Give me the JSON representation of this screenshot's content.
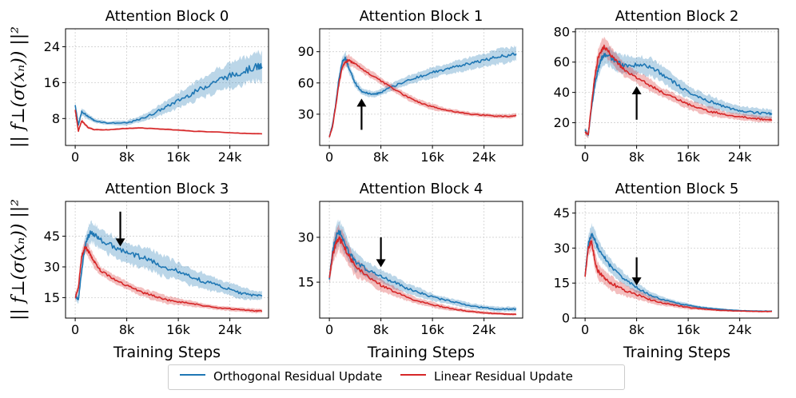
{
  "figure": {
    "ylabel": "|| f⊥(σ(xₙ)) ||²",
    "xlabel": "Training Steps",
    "orth_color": "#1f77b4",
    "lin_color": "#d62728"
  },
  "legend": {
    "orthogonal": "Orthogonal Residual Update",
    "linear": "Linear Residual Update"
  },
  "chart_data": [
    {
      "type": "line",
      "title": "Attention Block 0",
      "xlim": [
        -1500,
        30000
      ],
      "ylim": [
        2,
        28
      ],
      "xticks": [
        0,
        8000,
        16000,
        24000
      ],
      "xtick_labels": [
        "0",
        "8k",
        "16k",
        "24k"
      ],
      "yticks": [
        8,
        16,
        24
      ],
      "ytick_labels": [
        "8",
        "16",
        "24"
      ],
      "xlabel": "",
      "arrow": null,
      "series": [
        {
          "name": "Orthogonal Residual Update",
          "x": [
            0,
            500,
            1000,
            2000,
            3000,
            5000,
            8000,
            10000,
            12000,
            14000,
            16000,
            18000,
            20000,
            22000,
            24000,
            26000,
            28000,
            29000
          ],
          "y": [
            11,
            6.5,
            9.5,
            8.5,
            7.5,
            7.0,
            7.0,
            7.8,
            9.0,
            10.5,
            12.0,
            13.5,
            15.0,
            16.5,
            17.5,
            18.5,
            19.5,
            19.5
          ],
          "spread": [
            0.5,
            0.5,
            0.8,
            0.6,
            0.5,
            0.4,
            0.5,
            0.7,
            1.0,
            1.3,
            1.7,
            2.0,
            2.3,
            2.6,
            2.8,
            3.0,
            3.2,
            3.2
          ]
        },
        {
          "name": "Linear Residual Update",
          "x": [
            0,
            500,
            1000,
            2000,
            3000,
            5000,
            8000,
            10000,
            14000,
            18000,
            22000,
            26000,
            29000
          ],
          "y": [
            10,
            5.2,
            7.5,
            6.0,
            5.5,
            5.5,
            5.8,
            5.9,
            5.6,
            5.2,
            5.0,
            4.7,
            4.6
          ],
          "spread": [
            0.3,
            0.3,
            0.4,
            0.3,
            0.2,
            0.2,
            0.2,
            0.2,
            0.2,
            0.2,
            0.15,
            0.15,
            0.15
          ]
        }
      ]
    },
    {
      "type": "line",
      "title": "Attention Block 1",
      "xlim": [
        -1500,
        30000
      ],
      "ylim": [
        0,
        112
      ],
      "xticks": [
        0,
        8000,
        16000,
        24000
      ],
      "xtick_labels": [
        "0",
        "8k",
        "16k",
        "24k"
      ],
      "yticks": [
        30,
        60,
        90
      ],
      "ytick_labels": [
        "30",
        "60",
        "90"
      ],
      "xlabel": "",
      "arrow": {
        "x": 5000,
        "y_from": 15,
        "y_to": 45
      },
      "series": [
        {
          "name": "Orthogonal Residual Update",
          "x": [
            0,
            500,
            1000,
            1500,
            2000,
            2500,
            3000,
            4000,
            5000,
            6000,
            7000,
            8000,
            10000,
            12000,
            14000,
            16000,
            18000,
            20000,
            22000,
            24000,
            26000,
            28000,
            29000
          ],
          "y": [
            8,
            20,
            40,
            65,
            80,
            84,
            75,
            60,
            52,
            50,
            49,
            51,
            57,
            62,
            66,
            70,
            73,
            76,
            79,
            82,
            85,
            87,
            88
          ],
          "spread": [
            1,
            2,
            3,
            4,
            5,
            5,
            5,
            4,
            3,
            3,
            3,
            3,
            4,
            4,
            5,
            5,
            5,
            6,
            6,
            6,
            7,
            7,
            7
          ]
        },
        {
          "name": "Linear Residual Update",
          "x": [
            0,
            500,
            1000,
            1500,
            2000,
            2500,
            3000,
            4000,
            6000,
            8000,
            10000,
            12000,
            14000,
            16000,
            18000,
            20000,
            22000,
            24000,
            26000,
            28000,
            29000
          ],
          "y": [
            8,
            18,
            38,
            60,
            75,
            80,
            82,
            78,
            70,
            62,
            54,
            47,
            41,
            37,
            34,
            32,
            30,
            29,
            28,
            28,
            29
          ],
          "spread": [
            1,
            2,
            3,
            4,
            4,
            5,
            5,
            4,
            4,
            3,
            3,
            3,
            3,
            3,
            2,
            2,
            2,
            2,
            2,
            2,
            2
          ]
        }
      ]
    },
    {
      "type": "line",
      "title": "Attention Block 2",
      "xlim": [
        -1500,
        30000
      ],
      "ylim": [
        5,
        82
      ],
      "xticks": [
        0,
        8000,
        16000,
        24000
      ],
      "xtick_labels": [
        "0",
        "8k",
        "16k",
        "24k"
      ],
      "yticks": [
        20,
        40,
        60,
        80
      ],
      "ytick_labels": [
        "20",
        "40",
        "60",
        "80"
      ],
      "xlabel": "",
      "arrow": {
        "x": 8000,
        "y_from": 22,
        "y_to": 44
      },
      "series": [
        {
          "name": "Orthogonal Residual Update",
          "x": [
            0,
            500,
            1000,
            1500,
            2000,
            2500,
            3000,
            4000,
            5000,
            6000,
            8000,
            10000,
            12000,
            14000,
            16000,
            18000,
            20000,
            22000,
            24000,
            26000,
            28000,
            29000
          ],
          "y": [
            15,
            12,
            30,
            45,
            55,
            62,
            65,
            63,
            60,
            58,
            58,
            57,
            52,
            46,
            40,
            36,
            33,
            30,
            28,
            27,
            26,
            26
          ],
          "spread": [
            2,
            2,
            3,
            4,
            5,
            6,
            6,
            6,
            6,
            6,
            6,
            6,
            5,
            5,
            4,
            4,
            4,
            3,
            3,
            3,
            3,
            3
          ]
        },
        {
          "name": "Linear Residual Update",
          "x": [
            0,
            500,
            1000,
            1500,
            2000,
            2500,
            3000,
            4000,
            5000,
            6000,
            8000,
            10000,
            12000,
            14000,
            16000,
            18000,
            20000,
            22000,
            24000,
            26000,
            28000,
            29000
          ],
          "y": [
            14,
            12,
            32,
            50,
            62,
            68,
            70,
            65,
            60,
            55,
            50,
            45,
            40,
            36,
            32,
            29,
            27,
            25,
            24,
            23,
            22,
            22
          ],
          "spread": [
            2,
            2,
            4,
            5,
            6,
            6,
            6,
            5,
            5,
            4,
            4,
            4,
            3,
            3,
            3,
            3,
            3,
            2,
            2,
            2,
            2,
            2
          ]
        }
      ]
    },
    {
      "type": "line",
      "title": "Attention Block 3",
      "xlim": [
        -1500,
        30000
      ],
      "ylim": [
        5,
        62
      ],
      "xticks": [
        0,
        8000,
        16000,
        24000
      ],
      "xtick_labels": [
        "0",
        "8k",
        "16k",
        "24k"
      ],
      "yticks": [
        15,
        30,
        45
      ],
      "ytick_labels": [
        "15",
        "30",
        "45"
      ],
      "xlabel": "Training Steps",
      "arrow": {
        "x": 7000,
        "y_from": 57,
        "y_to": 40
      },
      "series": [
        {
          "name": "Orthogonal Residual Update",
          "x": [
            0,
            500,
            1000,
            1500,
            2000,
            2500,
            3000,
            4000,
            6000,
            8000,
            10000,
            12000,
            14000,
            16000,
            18000,
            20000,
            22000,
            24000,
            26000,
            28000,
            29000
          ],
          "y": [
            16,
            14,
            28,
            40,
            45,
            47,
            46,
            43,
            40,
            37,
            35,
            33,
            30,
            28,
            25,
            23,
            21,
            19,
            17,
            16,
            16
          ],
          "spread": [
            2,
            2,
            3,
            4,
            5,
            5,
            5,
            5,
            5,
            5,
            5,
            5,
            5,
            4,
            4,
            4,
            3,
            3,
            3,
            2,
            2
          ]
        },
        {
          "name": "Linear Residual Update",
          "x": [
            0,
            500,
            1000,
            1500,
            2000,
            2500,
            3000,
            4000,
            6000,
            8000,
            10000,
            12000,
            14000,
            16000,
            18000,
            20000,
            22000,
            24000,
            26000,
            28000,
            29000
          ],
          "y": [
            15,
            20,
            35,
            40,
            38,
            35,
            32,
            28,
            24,
            21,
            18,
            16,
            14,
            13,
            12,
            11,
            10,
            9.5,
            9,
            8.5,
            8.5
          ],
          "spread": [
            2,
            2,
            3,
            3,
            3,
            3,
            3,
            2,
            2,
            2,
            2,
            2,
            2,
            1.5,
            1.5,
            1,
            1,
            1,
            1,
            1,
            1
          ]
        }
      ]
    },
    {
      "type": "line",
      "title": "Attention Block 4",
      "xlim": [
        -1500,
        30000
      ],
      "ylim": [
        3,
        42
      ],
      "xticks": [
        0,
        8000,
        16000,
        24000
      ],
      "xtick_labels": [
        "0",
        "8k",
        "16k",
        "24k"
      ],
      "yticks": [
        15,
        30
      ],
      "ytick_labels": [
        "15",
        "30"
      ],
      "xlabel": "Training Steps",
      "arrow": {
        "x": 8000,
        "y_from": 30,
        "y_to": 20
      },
      "series": [
        {
          "name": "Orthogonal Residual Update",
          "x": [
            0,
            500,
            1000,
            1500,
            2000,
            3000,
            4000,
            6000,
            8000,
            10000,
            12000,
            14000,
            16000,
            18000,
            20000,
            22000,
            24000,
            26000,
            28000,
            29000
          ],
          "y": [
            16,
            25,
            30,
            32,
            30,
            25,
            22,
            19,
            17,
            15,
            13,
            11.5,
            10,
            9,
            8,
            7,
            6.5,
            6,
            6,
            6
          ],
          "spread": [
            2,
            3,
            4,
            4,
            4,
            3,
            3,
            2.5,
            2,
            2,
            1.5,
            1.5,
            1.2,
            1,
            1,
            1,
            0.8,
            0.8,
            0.8,
            0.8
          ]
        },
        {
          "name": "Linear Residual Update",
          "x": [
            0,
            500,
            1000,
            1500,
            2000,
            3000,
            4000,
            6000,
            8000,
            10000,
            12000,
            14000,
            16000,
            18000,
            20000,
            22000,
            24000,
            26000,
            28000,
            29000
          ],
          "y": [
            16,
            24,
            28,
            30,
            28,
            24,
            20,
            17,
            14,
            12,
            10,
            8.5,
            7.5,
            6.5,
            5.8,
            5.2,
            4.8,
            4.5,
            4.3,
            4.3
          ],
          "spread": [
            2,
            3,
            4,
            4,
            4,
            3,
            3,
            2,
            2,
            1.5,
            1.2,
            1,
            1,
            0.8,
            0.6,
            0.5,
            0.5,
            0.4,
            0.4,
            0.4
          ]
        }
      ]
    },
    {
      "type": "line",
      "title": "Attention Block 5",
      "xlim": [
        -1500,
        30000
      ],
      "ylim": [
        0,
        50
      ],
      "xticks": [
        0,
        8000,
        16000,
        24000
      ],
      "xtick_labels": [
        "0",
        "8k",
        "16k",
        "24k"
      ],
      "yticks": [
        0,
        15,
        30,
        45
      ],
      "ytick_labels": [
        "0",
        "15",
        "30",
        "45"
      ],
      "xlabel": "Training Steps",
      "arrow": {
        "x": 8000,
        "y_from": 26,
        "y_to": 14
      },
      "series": [
        {
          "name": "Orthogonal Residual Update",
          "x": [
            0,
            500,
            1000,
            1500,
            2000,
            3000,
            4000,
            6000,
            8000,
            10000,
            12000,
            14000,
            16000,
            18000,
            20000,
            22000,
            24000,
            26000,
            28000,
            29000
          ],
          "y": [
            18,
            32,
            36,
            34,
            30,
            26,
            22,
            17,
            13,
            10,
            8,
            6.5,
            5.5,
            4.5,
            4,
            3.5,
            3.2,
            3,
            3,
            3
          ],
          "spread": [
            2,
            3,
            4,
            4,
            3.5,
            3,
            3,
            2.5,
            2,
            1.5,
            1.2,
            1,
            0.8,
            0.6,
            0.5,
            0.4,
            0.3,
            0.3,
            0.3,
            0.3
          ]
        },
        {
          "name": "Linear Residual Update",
          "x": [
            0,
            500,
            1000,
            1500,
            2000,
            3000,
            4000,
            6000,
            8000,
            10000,
            12000,
            14000,
            16000,
            18000,
            20000,
            22000,
            24000,
            26000,
            28000,
            29000
          ],
          "y": [
            18,
            30,
            33,
            25,
            20,
            17,
            15,
            12,
            10,
            8,
            6.5,
            5.5,
            4.5,
            4,
            3.5,
            3.2,
            3,
            2.9,
            2.8,
            2.8
          ],
          "spread": [
            2,
            3,
            4,
            4,
            3.5,
            3,
            3,
            2.5,
            2,
            1.5,
            1.2,
            1,
            0.8,
            0.6,
            0.5,
            0.4,
            0.3,
            0.3,
            0.3,
            0.3
          ]
        }
      ]
    }
  ]
}
